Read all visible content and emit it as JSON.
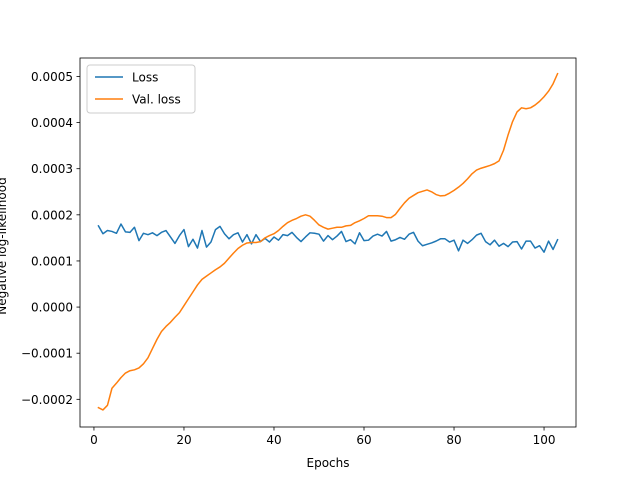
{
  "chart_data": {
    "type": "line",
    "title": "",
    "xlabel": "Epochs",
    "ylabel": "Negative log-likelihood",
    "xlim": [
      -3.1,
      107.1
    ],
    "ylim": [
      -0.00026,
      0.00054
    ],
    "xticks": [
      0,
      20,
      40,
      60,
      80,
      100
    ],
    "xtick_labels": [
      "0",
      "20",
      "40",
      "60",
      "80",
      "100"
    ],
    "yticks": [
      -0.0002,
      -0.0001,
      0.0,
      0.0001,
      0.0002,
      0.0003,
      0.0004,
      0.0005
    ],
    "ytick_labels": [
      "−0.0002",
      "−0.0001",
      "0.0000",
      "0.0001",
      "0.0002",
      "0.0003",
      "0.0004",
      "0.0005"
    ],
    "grid": false,
    "legend_position": "upper-left",
    "series": [
      {
        "name": "Loss",
        "color": "#1f77b4",
        "x_start": 1,
        "values": [
          0.000176,
          0.000159,
          0.000166,
          0.000164,
          0.00016,
          0.00018,
          0.000163,
          0.000162,
          0.000173,
          0.000144,
          0.00016,
          0.000157,
          0.000161,
          0.000155,
          0.000162,
          0.000166,
          0.000152,
          0.000138,
          0.000155,
          0.000168,
          0.000131,
          0.000147,
          0.000128,
          0.000166,
          0.00013,
          0.000141,
          0.000168,
          0.000175,
          0.000159,
          0.000148,
          0.000157,
          0.000161,
          0.000141,
          0.000157,
          0.000137,
          0.000157,
          0.000142,
          0.000149,
          0.000141,
          0.000152,
          0.000145,
          0.000157,
          0.000155,
          0.000162,
          0.000151,
          0.000142,
          0.000152,
          0.000161,
          0.00016,
          0.000158,
          0.000143,
          0.000155,
          0.000146,
          0.000154,
          0.000164,
          0.000142,
          0.000146,
          0.000137,
          0.000161,
          0.000144,
          0.000145,
          0.000154,
          0.000158,
          0.000154,
          0.000164,
          0.000143,
          0.000146,
          0.000151,
          0.000147,
          0.000158,
          0.000162,
          0.000143,
          0.000133,
          0.000136,
          0.000139,
          0.000143,
          0.000148,
          0.000148,
          0.000141,
          0.000145,
          0.000122,
          0.000145,
          0.000138,
          0.000146,
          0.000156,
          0.00016,
          0.000142,
          0.000135,
          0.000145,
          0.000132,
          0.000138,
          0.000131,
          0.000141,
          0.000142,
          0.000126,
          0.000143,
          0.000143,
          0.000128,
          0.000133,
          0.000119,
          0.000143,
          0.000125,
          0.000146
        ]
      },
      {
        "name": "Val. loss",
        "color": "#ff7f0e",
        "x_start": 1,
        "values": [
          -0.000218,
          -0.000223,
          -0.000213,
          -0.000176,
          -0.000165,
          -0.000153,
          -0.000143,
          -0.000138,
          -0.000136,
          -0.000132,
          -0.000123,
          -0.00011,
          -9e-05,
          -7e-05,
          -5.3e-05,
          -4.2e-05,
          -3.3e-05,
          -2.2e-05,
          -1.2e-05,
          3e-06,
          1.8e-05,
          3.3e-05,
          4.8e-05,
          6e-05,
          6.7e-05,
          7.4e-05,
          8.1e-05,
          8.7e-05,
          9.5e-05,
          0.000106,
          0.000117,
          0.000127,
          0.000134,
          0.000139,
          0.00014,
          0.00014,
          0.000142,
          0.00015,
          0.000155,
          0.000159,
          0.000166,
          0.000175,
          0.000183,
          0.000188,
          0.000192,
          0.000197,
          0.0002,
          0.000197,
          0.000188,
          0.000178,
          0.000173,
          0.000169,
          0.000171,
          0.000173,
          0.000173,
          0.000176,
          0.000177,
          0.000183,
          0.000187,
          0.000192,
          0.000198,
          0.000198,
          0.000198,
          0.000197,
          0.000194,
          0.000194,
          0.000201,
          0.000214,
          0.000226,
          0.000236,
          0.000242,
          0.000248,
          0.000251,
          0.000254,
          0.00025,
          0.000244,
          0.000241,
          0.000242,
          0.000247,
          0.000253,
          0.00026,
          0.000268,
          0.000278,
          0.000289,
          0.000297,
          0.000301,
          0.000304,
          0.000307,
          0.000311,
          0.000317,
          0.00034,
          0.000373,
          0.000402,
          0.000423,
          0.000432,
          0.00043,
          0.000432,
          0.000438,
          0.000446,
          0.000456,
          0.000468,
          0.000484,
          0.000506
        ]
      }
    ]
  }
}
